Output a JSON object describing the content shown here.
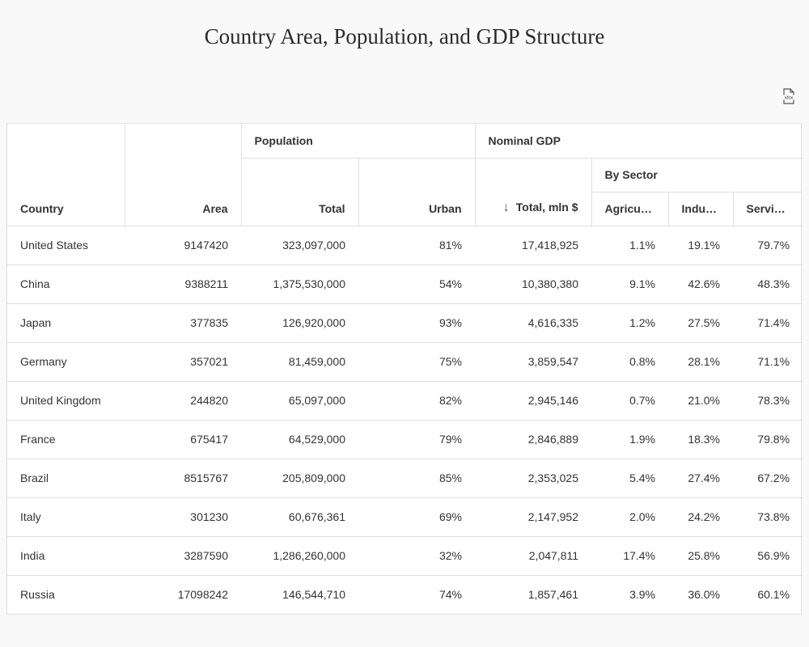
{
  "page": {
    "title": "Country Area, Population, and GDP Structure",
    "export_icon": "xlsx-file-icon"
  },
  "table": {
    "group_headers": {
      "population": "Population",
      "nominal_gdp": "Nominal GDP",
      "by_sector": "By Sector"
    },
    "columns": {
      "country": "Country",
      "area": "Area",
      "pop_total": "Total",
      "urban": "Urban",
      "gdp_total": "Total, mln $",
      "agriculture": "Agricu…",
      "industry": "Indu…",
      "services": "Servi…"
    },
    "sort": {
      "column": "gdp_total",
      "direction": "descending",
      "icon": "arrow-down-icon"
    },
    "rows": [
      [
        "United States",
        "9147420",
        "323,097,000",
        "81%",
        "17,418,925",
        "1.1%",
        "19.1%",
        "79.7%"
      ],
      [
        "China",
        "9388211",
        "1,375,530,000",
        "54%",
        "10,380,380",
        "9.1%",
        "42.6%",
        "48.3%"
      ],
      [
        "Japan",
        "377835",
        "126,920,000",
        "93%",
        "4,616,335",
        "1.2%",
        "27.5%",
        "71.4%"
      ],
      [
        "Germany",
        "357021",
        "81,459,000",
        "75%",
        "3,859,547",
        "0.8%",
        "28.1%",
        "71.1%"
      ],
      [
        "United Kingdom",
        "244820",
        "65,097,000",
        "82%",
        "2,945,146",
        "0.7%",
        "21.0%",
        "78.3%"
      ],
      [
        "France",
        "675417",
        "64,529,000",
        "79%",
        "2,846,889",
        "1.9%",
        "18.3%",
        "79.8%"
      ],
      [
        "Brazil",
        "8515767",
        "205,809,000",
        "85%",
        "2,353,025",
        "5.4%",
        "27.4%",
        "67.2%"
      ],
      [
        "Italy",
        "301230",
        "60,676,361",
        "69%",
        "2,147,952",
        "2.0%",
        "24.2%",
        "73.8%"
      ],
      [
        "India",
        "3287590",
        "1,286,260,000",
        "32%",
        "2,047,811",
        "17.4%",
        "25.8%",
        "56.9%"
      ],
      [
        "Russia",
        "17098242",
        "146,544,710",
        "74%",
        "1,857,461",
        "3.9%",
        "36.0%",
        "60.1%"
      ]
    ]
  }
}
